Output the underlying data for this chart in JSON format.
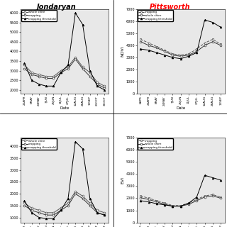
{
  "title_left": "Jondaryan",
  "title_right": "Pittsworth",
  "title_right_color": "red",
  "dates_jondaryan": [
    "22APR",
    "6MAY",
    "24MAY",
    "7JUN",
    "25JUN",
    "11JUL",
    "27JUL",
    "12AUG",
    "28AUG",
    "13SEP",
    "23OCT",
    "31OCT"
  ],
  "dates_pittsworth": [
    "6APR",
    "24APR",
    "8MAY",
    "24MAY",
    "7JUN",
    "25JUN",
    "11JUL",
    "27JUL",
    "12AUG",
    "28AUG",
    "13SEP"
  ],
  "jon_ndvi_whole_shire": [
    3300,
    2900,
    2800,
    2700,
    2700,
    3000,
    3200,
    3700,
    3200,
    2900,
    2400,
    2200
  ],
  "jon_ndvi_cropping": [
    3100,
    2800,
    2700,
    2600,
    2600,
    2900,
    3100,
    3600,
    3100,
    2700,
    2300,
    2100
  ],
  "jon_ndvi_threshold": [
    3400,
    2500,
    2300,
    2200,
    2200,
    2900,
    3300,
    6000,
    5400,
    3000,
    2200,
    2000
  ],
  "pitt_ndvi_cropping": [
    4500,
    4200,
    3900,
    3600,
    3300,
    3200,
    3300,
    3700,
    4200,
    4500,
    4100
  ],
  "pitt_ndvi_whole_shire": [
    4300,
    4000,
    3800,
    3500,
    3200,
    3100,
    3200,
    3500,
    4000,
    4300,
    4000
  ],
  "pitt_ndvi_threshold": [
    3700,
    3600,
    3400,
    3200,
    3000,
    2900,
    3100,
    3400,
    6100,
    5900,
    5500
  ],
  "jon_evi_whole_shire": [
    1600,
    1400,
    1300,
    1200,
    1200,
    1400,
    1600,
    2100,
    1900,
    1600,
    1300,
    1200
  ],
  "jon_evi_cropping": [
    1500,
    1300,
    1200,
    1100,
    1100,
    1300,
    1500,
    2000,
    1800,
    1500,
    1200,
    1100
  ],
  "jon_evi_threshold": [
    1700,
    1200,
    1000,
    950,
    950,
    1300,
    1800,
    4200,
    3900,
    1800,
    1200,
    1100
  ],
  "pitt_evi_cropping": [
    2200,
    2000,
    1800,
    1600,
    1400,
    1400,
    1600,
    1900,
    2200,
    2300,
    2100
  ],
  "pitt_evi_whole_shire": [
    2050,
    1900,
    1700,
    1500,
    1350,
    1350,
    1500,
    1800,
    2100,
    2200,
    2000
  ],
  "pitt_evi_threshold": [
    1800,
    1700,
    1550,
    1450,
    1350,
    1350,
    1600,
    2100,
    3900,
    3700,
    3500
  ],
  "pitt_ndvi_ylim": [
    0,
    7000
  ],
  "pitt_ndvi_yticks": [
    0,
    1000,
    2000,
    3000,
    4000,
    5000,
    6000,
    7000
  ],
  "pitt_evi_ylim": [
    0,
    7000
  ],
  "pitt_evi_yticks": [
    0,
    1000,
    2000,
    3000,
    4000,
    5000,
    6000,
    7000
  ],
  "ylabel_ndvi": "NDVI",
  "ylabel_evi": "EVI",
  "xlabel": "Date",
  "bg_color": "#e8e8e8"
}
